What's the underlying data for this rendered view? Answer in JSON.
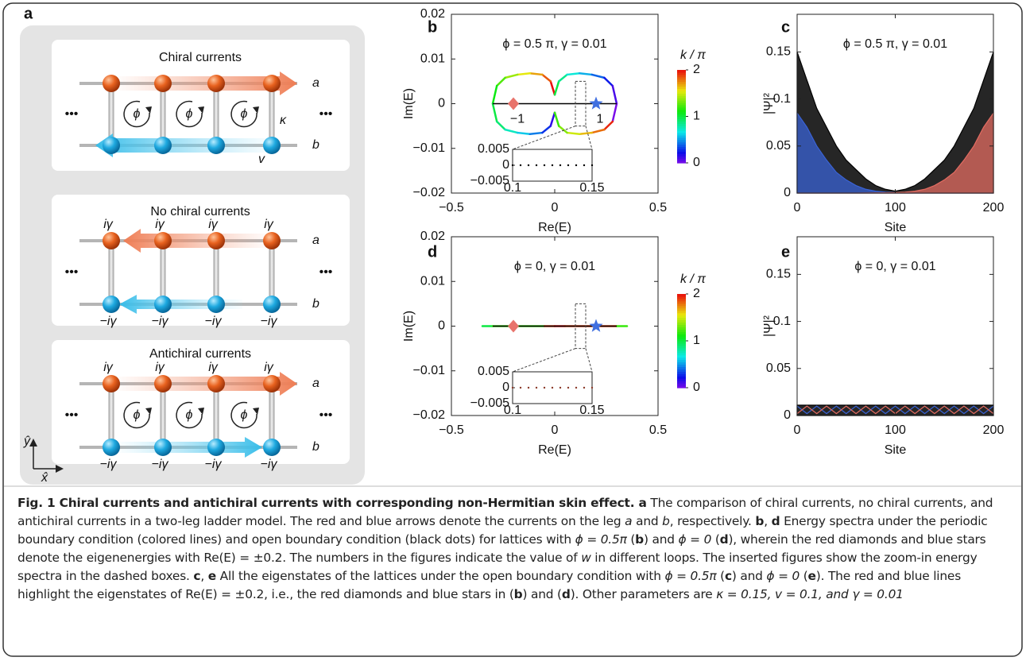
{
  "diagram": {
    "panel": "a",
    "titles": [
      "Chiral currents",
      "No chiral currents",
      "Antichiral currents"
    ],
    "legs": [
      "a",
      "b"
    ],
    "ellipsis": "•••",
    "phi": "ϕ",
    "kappa": "κ",
    "v": "v",
    "gain": "iγ",
    "loss": "−iγ",
    "axes": [
      "ŷ",
      "x̂"
    ]
  },
  "chart_data": [
    {
      "type": "line",
      "panel": "b",
      "annotation": "ϕ = 0.5 π, γ = 0.01",
      "xlabel": "Re(E)",
      "ylabel": "Im(E)",
      "xlim": [
        -0.5,
        0.5
      ],
      "xticks": [
        {
          "value": -0.5,
          "label": "−0.5"
        },
        0,
        0.5
      ],
      "ylim": [
        -0.02,
        0.02
      ],
      "yticks": [
        {
          "value": -0.02,
          "label": "−0.02"
        },
        {
          "value": -0.01,
          "label": "−0.01"
        },
        0,
        0.01,
        0.02
      ],
      "colorbar": {
        "label": "k / π",
        "lim": [
          0,
          2
        ],
        "ticks": [
          0,
          1,
          2
        ]
      },
      "series": [
        {
          "x": [
            0,
            -0.02,
            -0.06,
            -0.12,
            -0.18,
            -0.24,
            -0.28,
            -0.3,
            -0.28,
            -0.24,
            -0.18,
            -0.12,
            -0.06,
            -0.02,
            0
          ],
          "values": [
            0.002,
            0.005,
            0.0065,
            0.0068,
            0.0065,
            0.0058,
            0.004,
            0,
            -0.004,
            -0.0058,
            -0.0065,
            -0.0068,
            -0.0065,
            -0.005,
            -0.002
          ],
          "k": [
            2,
            1.85,
            1.7,
            1.55,
            1.4,
            1.25,
            1.1,
            1,
            0.9,
            0.75,
            0.6,
            0.45,
            0.3,
            0.15,
            0
          ]
        },
        {
          "x": [
            0,
            0.02,
            0.06,
            0.12,
            0.18,
            0.24,
            0.28,
            0.3,
            0.28,
            0.24,
            0.18,
            0.12,
            0.06,
            0.02,
            0
          ],
          "values": [
            0.002,
            0.005,
            0.0065,
            0.0068,
            0.0065,
            0.0058,
            0.004,
            0,
            -0.004,
            -0.0058,
            -0.0065,
            -0.0068,
            -0.0065,
            -0.005,
            -0.002
          ],
          "k": [
            1,
            0.85,
            0.7,
            0.55,
            0.4,
            0.25,
            0.1,
            0,
            1.95,
            1.8,
            1.65,
            1.5,
            1.35,
            1.2,
            1.05
          ]
        },
        {
          "x": [
            -0.3,
            0.3
          ],
          "values": [
            0,
            0
          ],
          "color": "#000000"
        },
        {
          "x": [
            -0.2
          ],
          "values": [
            0
          ],
          "marker": "diamond",
          "color": "#e8736b"
        },
        {
          "x": [
            0.2
          ],
          "values": [
            0
          ],
          "marker": "star",
          "color": "#3f6fe0"
        }
      ],
      "winding_labels": [
        "−1",
        "1"
      ],
      "inset": {
        "xlim": [
          0.1,
          0.15
        ],
        "xticks": [
          0.1,
          0.15
        ],
        "ylim": [
          -0.005,
          0.005
        ],
        "yticks": [
          {
            "value": -0.005,
            "label": "−0.005"
          },
          0,
          0.005
        ],
        "x": [
          0.1,
          0.105,
          0.11,
          0.115,
          0.12,
          0.125,
          0.13,
          0.135,
          0.14,
          0.145,
          0.15
        ],
        "values": [
          0,
          0,
          0,
          0,
          0,
          0,
          0,
          0,
          0,
          0,
          0
        ],
        "color": "#000000"
      }
    },
    {
      "type": "area",
      "panel": "c",
      "annotation": "ϕ = 0.5 π, γ = 0.01",
      "xlabel": "Site",
      "ylabel": "|Ψ|²",
      "xlim": [
        0,
        200
      ],
      "xticks": [
        0,
        100,
        200
      ],
      "ylim": [
        0,
        0.19
      ],
      "yticks": [
        0,
        0.05,
        0.1,
        0.15
      ],
      "x": [
        0,
        10,
        20,
        30,
        40,
        50,
        60,
        70,
        80,
        90,
        100,
        110,
        120,
        130,
        140,
        150,
        160,
        170,
        180,
        190,
        200
      ],
      "series": [
        {
          "color": "#000000",
          "fill": true,
          "values": [
            0.15,
            0.12,
            0.09,
            0.07,
            0.05,
            0.035,
            0.025,
            0.015,
            0.008,
            0.004,
            0.002,
            0.004,
            0.008,
            0.015,
            0.025,
            0.035,
            0.05,
            0.07,
            0.09,
            0.12,
            0.15
          ]
        },
        {
          "color": "#3a63d6",
          "fill": true,
          "values": [
            0.085,
            0.07,
            0.05,
            0.035,
            0.022,
            0.014,
            0.008,
            0.004,
            0.002,
            0.001,
            0.0005,
            0.0003,
            0.0002,
            0.0001,
            0,
            0,
            0,
            0,
            0,
            0,
            0
          ]
        },
        {
          "color": "#e36c62",
          "fill": true,
          "values": [
            0,
            0,
            0,
            0,
            0,
            0,
            0,
            0.0001,
            0.0002,
            0.0003,
            0.0005,
            0.001,
            0.002,
            0.004,
            0.008,
            0.014,
            0.022,
            0.035,
            0.05,
            0.07,
            0.085
          ]
        }
      ]
    },
    {
      "type": "line",
      "panel": "d",
      "annotation": "ϕ = 0, γ = 0.01",
      "xlabel": "Re(E)",
      "ylabel": "Im(E)",
      "xlim": [
        -0.5,
        0.5
      ],
      "xticks": [
        {
          "value": -0.5,
          "label": "−0.5"
        },
        0,
        0.5
      ],
      "ylim": [
        -0.02,
        0.02
      ],
      "yticks": [
        {
          "value": -0.02,
          "label": "−0.02"
        },
        {
          "value": -0.01,
          "label": "−0.01"
        },
        0,
        0.01,
        0.02
      ],
      "colorbar": {
        "label": "k / π",
        "lim": [
          0,
          2
        ],
        "ticks": [
          0,
          1,
          2
        ]
      },
      "series": [
        {
          "x": [
            -0.35,
            -0.3,
            -0.05,
            0,
            0.05,
            0.3,
            0.35
          ],
          "values": [
            0,
            0,
            0,
            0,
            0,
            0,
            0
          ],
          "k": [
            1,
            1.2,
            1.9,
            2,
            1.9,
            1.2,
            1
          ]
        },
        {
          "x": [
            -0.3,
            0.3
          ],
          "values": [
            0,
            0
          ],
          "color": "#000000"
        },
        {
          "x": [
            -0.2
          ],
          "values": [
            0
          ],
          "marker": "diamond",
          "color": "#e8736b"
        },
        {
          "x": [
            0.2
          ],
          "values": [
            0
          ],
          "marker": "star",
          "color": "#3f6fe0"
        }
      ],
      "inset": {
        "xlim": [
          0.1,
          0.15
        ],
        "xticks": [
          0.1,
          0.15
        ],
        "ylim": [
          -0.005,
          0.005
        ],
        "yticks": [
          {
            "value": -0.005,
            "label": "−0.005"
          },
          0,
          0.005
        ],
        "x": [
          0.1,
          0.105,
          0.11,
          0.115,
          0.12,
          0.125,
          0.13,
          0.135,
          0.14,
          0.145,
          0.15
        ],
        "values": [
          0,
          0,
          0,
          0,
          0,
          0,
          0,
          0,
          0,
          0,
          0
        ],
        "color": "#8b3a2a"
      }
    },
    {
      "type": "area",
      "panel": "e",
      "annotation": "ϕ = 0, γ = 0.01",
      "xlabel": "Site",
      "ylabel": "|Ψ|²",
      "xlim": [
        0,
        200
      ],
      "xticks": [
        0,
        100,
        200
      ],
      "ylim": [
        0,
        0.19
      ],
      "yticks": [
        0,
        0.05,
        0.1,
        0.15
      ],
      "x": [
        0,
        10,
        20,
        30,
        40,
        50,
        60,
        70,
        80,
        90,
        100,
        110,
        120,
        130,
        140,
        150,
        160,
        170,
        180,
        190,
        200
      ],
      "series": [
        {
          "color": "#000000",
          "fill": true,
          "values": [
            0.011,
            0.011,
            0.011,
            0.011,
            0.011,
            0.011,
            0.011,
            0.011,
            0.011,
            0.011,
            0.011,
            0.011,
            0.011,
            0.011,
            0.011,
            0.011,
            0.011,
            0.011,
            0.011,
            0.011,
            0.011
          ]
        },
        {
          "color": "#3a63d6",
          "values": [
            0.01,
            0.002,
            0.01,
            0.002,
            0.01,
            0.002,
            0.01,
            0.002,
            0.01,
            0.002,
            0.01,
            0.002,
            0.01,
            0.002,
            0.01,
            0.002,
            0.01,
            0.002,
            0.01,
            0.002,
            0.01
          ]
        },
        {
          "color": "#e36c62",
          "values": [
            0.002,
            0.01,
            0.002,
            0.01,
            0.002,
            0.01,
            0.002,
            0.01,
            0.002,
            0.01,
            0.002,
            0.01,
            0.002,
            0.01,
            0.002,
            0.01,
            0.002,
            0.01,
            0.002,
            0.01,
            0.002
          ]
        }
      ]
    }
  ],
  "caption": {
    "runs": [
      {
        "text": "Fig. 1 Chiral currents and antichiral currents with corresponding non-Hermitian skin effect. a",
        "style": "bold"
      },
      {
        "text": " The comparison of chiral currents, no chiral currents, and antichiral currents in a two-leg ladder model. The red and blue arrows denote the currents on the leg "
      },
      {
        "text": "a",
        "style": "italic"
      },
      {
        "text": " and "
      },
      {
        "text": "b",
        "style": "italic"
      },
      {
        "text": ", respectively. "
      },
      {
        "text": "b",
        "style": "bold"
      },
      {
        "text": ", "
      },
      {
        "text": "d",
        "style": "bold"
      },
      {
        "text": " Energy spectra under the periodic boundary condition (colored lines) and open boundary condition (black dots) for lattices with "
      },
      {
        "text": "ϕ = 0.5π",
        "style": "italic"
      },
      {
        "text": " ("
      },
      {
        "text": "b",
        "style": "bold"
      },
      {
        "text": ") and "
      },
      {
        "text": "ϕ = 0",
        "style": "italic"
      },
      {
        "text": " ("
      },
      {
        "text": "d",
        "style": "bold"
      },
      {
        "text": "), wherein the red diamonds and blue stars denote the eigenenergies with Re(E) = ±0.2. The numbers in the figures indicate the value of "
      },
      {
        "text": "w",
        "style": "italic"
      },
      {
        "text": " in different loops. The inserted figures show the zoom-in energy spectra in the dashed boxes. "
      },
      {
        "text": "c",
        "style": "bold"
      },
      {
        "text": ", "
      },
      {
        "text": "e",
        "style": "bold"
      },
      {
        "text": " All the eigenstates of the lattices under the open boundary condition with "
      },
      {
        "text": "ϕ = 0.5π",
        "style": "italic"
      },
      {
        "text": " ("
      },
      {
        "text": "c",
        "style": "bold"
      },
      {
        "text": ") and "
      },
      {
        "text": "ϕ = 0",
        "style": "italic"
      },
      {
        "text": " ("
      },
      {
        "text": "e",
        "style": "bold"
      },
      {
        "text": "). The red and blue lines highlight the eigenstates of Re(E) = ±0.2, i.e., the red diamonds and blue stars in ("
      },
      {
        "text": "b",
        "style": "bold"
      },
      {
        "text": ") and ("
      },
      {
        "text": "d",
        "style": "bold"
      },
      {
        "text": "). Other parameters are "
      },
      {
        "text": "κ = 0.15, v = 0.1, and γ = 0.01",
        "style": "italic"
      }
    ]
  }
}
